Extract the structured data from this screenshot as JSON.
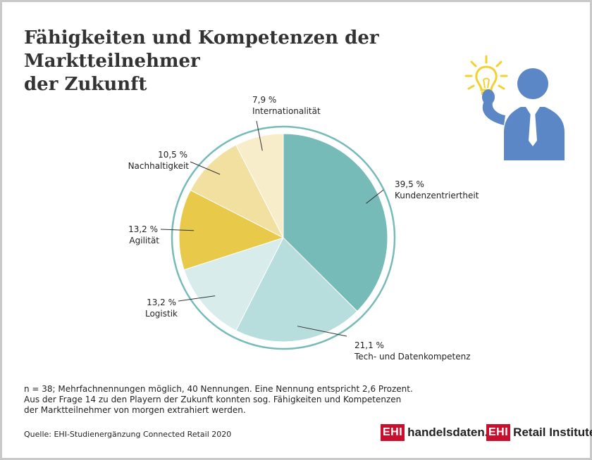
{
  "title": {
    "line1": "Fähigkeiten und Kompetenzen der Marktteilnehmer",
    "line2": "der Zukunft"
  },
  "chart_data": {
    "type": "pie",
    "slices": [
      {
        "label": "Kundenzentriertheit",
        "value": 39.5,
        "value_label": "39,5 %",
        "color": "#77bbb9"
      },
      {
        "label": "Tech- und Datenkompetenz",
        "value": 21.1,
        "value_label": "21,1 %",
        "color": "#b8dddd"
      },
      {
        "label": "Logistik",
        "value": 13.2,
        "value_label": "13,2 %",
        "color": "#d8ecec"
      },
      {
        "label": "Agilität",
        "value": 13.2,
        "value_label": "13,2 %",
        "color": "#e8c94a"
      },
      {
        "label": "Nachhaltigkeit",
        "value": 10.5,
        "value_label": "10,5 %",
        "color": "#f2e0a0"
      },
      {
        "label": "Internationalität",
        "value": 7.9,
        "value_label": "7,9 %",
        "color": "#f8edca"
      }
    ],
    "start": "12 o'clock",
    "direction": "clockwise",
    "ring_color": "#77bbb9"
  },
  "footnote": {
    "line1": "n = 38; Mehrfachnennungen möglich, 40 Nennungen. Eine Nennung entspricht 2,6 Prozent.",
    "line2": "Aus der Frage 14 zu den Playern der Zukunft konnten sog. Fähigkeiten und Kompetenzen",
    "line3": "der Marktteilnehmer von morgen extrahiert werden."
  },
  "source": "Quelle: EHI-Studienergänzung Connected Retail 2020",
  "logos": {
    "ehi_mark": "EHI",
    "left_text": "handelsdaten.de",
    "right_text": "Retail Institute",
    "registered": "®"
  },
  "illustration": {
    "icons": [
      "lightbulb-icon",
      "businessman-icon"
    ],
    "colors": {
      "figure": "#5b87c6",
      "bulb": "#f2d230"
    }
  }
}
